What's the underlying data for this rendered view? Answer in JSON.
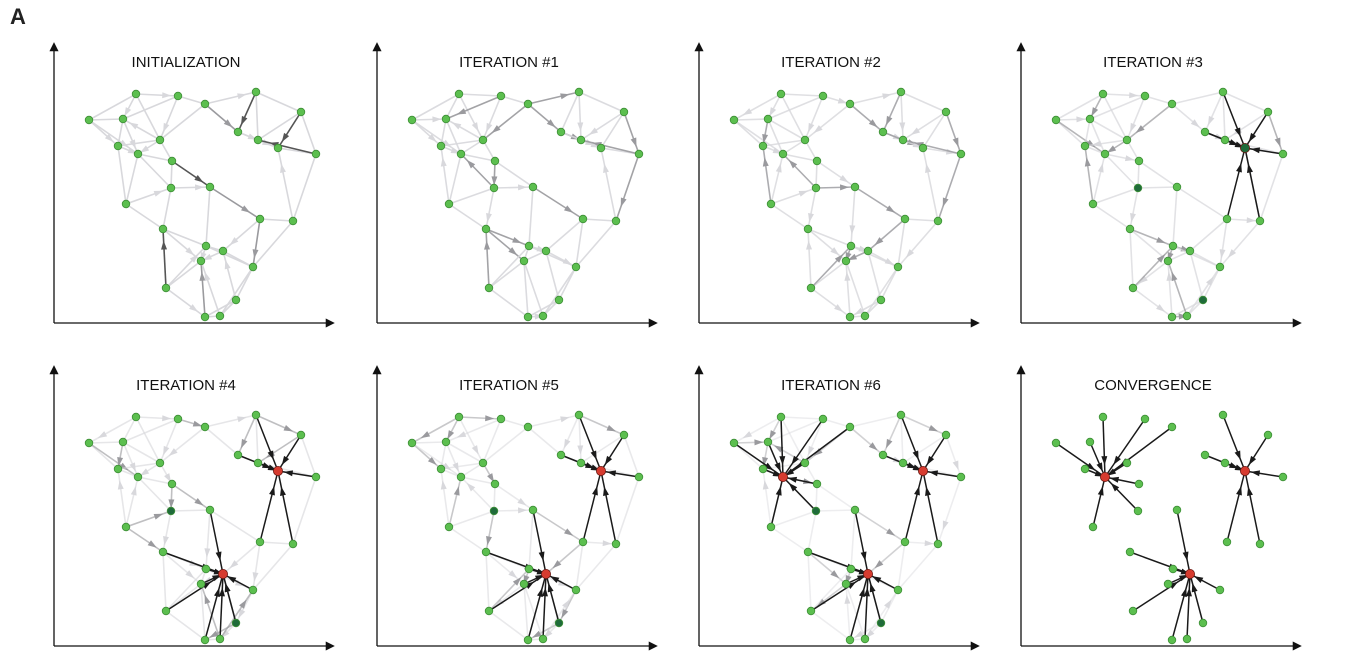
{
  "figure_label": "A",
  "panels": [
    {
      "title": "INITIALIZATION",
      "stage": 0
    },
    {
      "title": "ITERATION #1",
      "stage": 1
    },
    {
      "title": "ITERATION #2",
      "stage": 2
    },
    {
      "title": "ITERATION #3",
      "stage": 3
    },
    {
      "title": "ITERATION #4",
      "stage": 4
    },
    {
      "title": "ITERATION #5",
      "stage": 5
    },
    {
      "title": "ITERATION #6",
      "stage": 6
    },
    {
      "title": "CONVERGENCE",
      "stage": 7
    }
  ],
  "colors": {
    "point": "#5cbf4f",
    "point_stroke": "#3e8f37",
    "point_dark": "#1f6b3a",
    "exemplar": "#d63b2f",
    "axis": "#111111",
    "edge_light": "#d8d8dc",
    "edge_mid": "#9a9a9e",
    "edge_dark": "#1a1a1a"
  }
}
